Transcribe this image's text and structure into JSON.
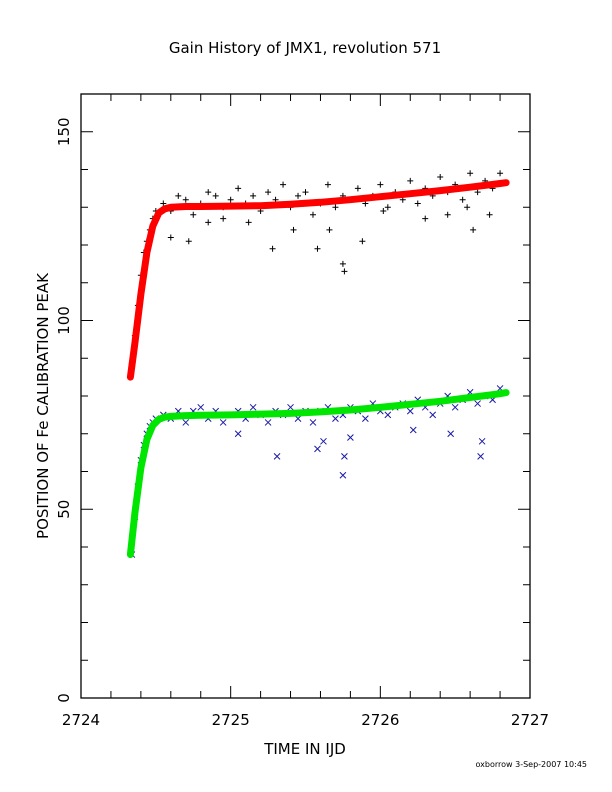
{
  "chart_data": {
    "type": "scatter",
    "title": "Gain History of JMX1, revolution 571",
    "xlabel": "TIME IN IJD",
    "ylabel": "POSITION OF Fe CALIBRATION PEAK",
    "xlim": [
      2724,
      2727
    ],
    "ylim": [
      0,
      160
    ],
    "x_ticks": [
      2724,
      2725,
      2726,
      2727
    ],
    "y_ticks": [
      0,
      50,
      100,
      150
    ],
    "grid": false,
    "colors": {
      "upper_points": "#000000",
      "upper_fit": "#ff0000",
      "lower_points": "#1a1aa8",
      "lower_fit": "#00e600",
      "axes": "#000000"
    },
    "series": [
      {
        "role": "upper-measurements",
        "marker": "plus",
        "color": "#000000",
        "x": [
          2724.34,
          2724.36,
          2724.38,
          2724.4,
          2724.42,
          2724.44,
          2724.46,
          2724.48,
          2724.5,
          2724.55,
          2724.6,
          2724.65,
          2724.7,
          2724.75,
          2724.8,
          2724.85,
          2724.9,
          2724.95,
          2725.0,
          2725.05,
          2725.1,
          2725.15,
          2725.2,
          2725.25,
          2725.3,
          2725.35,
          2725.4,
          2725.45,
          2725.5,
          2725.55,
          2725.6,
          2725.65,
          2725.7,
          2725.75,
          2725.8,
          2725.85,
          2725.9,
          2725.95,
          2726.0,
          2726.05,
          2726.1,
          2726.15,
          2726.2,
          2726.25,
          2726.3,
          2726.35,
          2726.4,
          2726.45,
          2726.5,
          2726.55,
          2726.6,
          2726.65,
          2726.7,
          2726.75,
          2726.8,
          2724.6,
          2724.72,
          2724.85,
          2725.28,
          2725.42,
          2725.58,
          2725.75,
          2725.76,
          2725.88,
          2726.3,
          2726.45,
          2726.62,
          2724.95,
          2725.12,
          2725.66,
          2726.02,
          2726.58,
          2726.73
        ],
        "y": [
          88.5,
          96,
          104,
          112,
          118,
          121,
          124,
          127,
          129,
          131,
          129,
          133,
          132,
          128,
          131,
          134,
          133,
          130,
          132,
          135,
          131,
          133,
          129,
          134,
          132,
          136,
          130,
          133,
          134,
          128,
          131,
          136,
          130,
          133,
          132,
          135,
          131,
          133,
          136,
          130,
          134,
          132,
          137,
          131,
          135,
          133,
          138,
          134,
          136,
          132,
          139,
          134,
          137,
          135,
          139,
          122,
          121,
          126,
          119,
          124,
          119,
          115,
          113,
          121,
          127,
          128,
          124,
          127,
          126,
          124,
          129,
          130,
          128
        ]
      },
      {
        "role": "upper-fit",
        "marker": "line",
        "color": "#ff0000",
        "x": [
          2724.33,
          2724.36,
          2724.4,
          2724.44,
          2724.48,
          2724.52,
          2724.56,
          2724.6,
          2724.7,
          2724.8,
          2725.0,
          2725.2,
          2725.4,
          2725.6,
          2725.8,
          2726.0,
          2726.2,
          2726.4,
          2726.6,
          2726.8,
          2726.84
        ],
        "y": [
          85,
          94,
          107,
          118,
          125,
          128.5,
          129.6,
          130,
          130.2,
          130.2,
          130.3,
          130.4,
          130.8,
          131.3,
          132,
          132.8,
          133.6,
          134.4,
          135.3,
          136.3,
          136.5
        ]
      },
      {
        "role": "lower-measurements",
        "marker": "cross",
        "color": "#1a1aa8",
        "x": [
          2724.34,
          2724.36,
          2724.38,
          2724.4,
          2724.42,
          2724.44,
          2724.46,
          2724.48,
          2724.5,
          2724.55,
          2724.6,
          2724.65,
          2724.7,
          2724.75,
          2724.8,
          2724.85,
          2724.9,
          2724.95,
          2725.0,
          2725.05,
          2725.1,
          2725.15,
          2725.2,
          2725.25,
          2725.3,
          2725.35,
          2725.4,
          2725.45,
          2725.5,
          2725.55,
          2725.6,
          2725.65,
          2725.7,
          2725.75,
          2725.8,
          2725.85,
          2725.9,
          2725.95,
          2726.0,
          2726.05,
          2726.1,
          2726.15,
          2726.2,
          2726.25,
          2726.3,
          2726.35,
          2726.4,
          2726.45,
          2726.5,
          2726.55,
          2726.6,
          2726.65,
          2726.7,
          2726.75,
          2726.8,
          2725.31,
          2725.58,
          2725.62,
          2725.75,
          2725.76,
          2725.8,
          2726.47,
          2726.67,
          2726.68,
          2725.05,
          2726.22
        ],
        "y": [
          38,
          48,
          56,
          63,
          67,
          70,
          72,
          73,
          74,
          75,
          74,
          76,
          73,
          76,
          77,
          74,
          76,
          73,
          75,
          76,
          74,
          77,
          75,
          73,
          76,
          75,
          77,
          74,
          76,
          73,
          76,
          77,
          74,
          75,
          77,
          76,
          74,
          78,
          76,
          75,
          77,
          78,
          76,
          79,
          77,
          75,
          78,
          80,
          77,
          79,
          81,
          78,
          80,
          79,
          82,
          64,
          66,
          68,
          59,
          64,
          69,
          70,
          64,
          68,
          70,
          71
        ]
      },
      {
        "role": "lower-fit",
        "marker": "line",
        "color": "#00e600",
        "x": [
          2724.33,
          2724.36,
          2724.4,
          2724.44,
          2724.48,
          2724.52,
          2724.56,
          2724.6,
          2724.7,
          2724.8,
          2725.0,
          2725.2,
          2725.4,
          2725.6,
          2725.8,
          2726.0,
          2726.2,
          2726.4,
          2726.6,
          2726.8,
          2726.84
        ],
        "y": [
          38,
          49,
          61,
          68.5,
          72.2,
          73.8,
          74.4,
          74.6,
          74.8,
          74.9,
          75.0,
          75.2,
          75.4,
          75.8,
          76.3,
          77.0,
          77.8,
          78.6,
          79.6,
          80.6,
          80.9
        ]
      }
    ]
  },
  "footer": {
    "signature": "oxborrow  3-Sep-2007 10:45"
  }
}
